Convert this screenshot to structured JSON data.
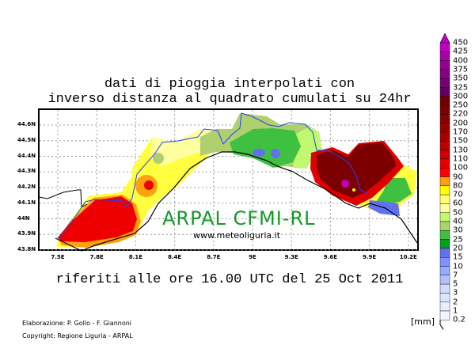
{
  "title_line1": "dati di pioggia interpolati con",
  "title_line2": "inverso distanza al quadrato cumulati su 24hr",
  "subtitle": "riferiti alle ore 16.00 UTC del 25 Oct 2011",
  "watermark": "ARPAL CFMI-RL",
  "website": "www.meteoliguria.it",
  "credits": "Elaborazione: P. Gollo - F. Giannoni",
  "copyright": "Copyright: Regione Liguria - ARPAL",
  "units": "[mm]",
  "lat_labels": [
    "44.6N",
    "44.5N",
    "44.4N",
    "44.3N",
    "44.2N",
    "44.1N",
    "44N",
    "43.9N",
    "43.8N"
  ],
  "lon_labels": [
    "7.5E",
    "7.8E",
    "8.1E",
    "8.4E",
    "8.7E",
    "9E",
    "9.3E",
    "9.6E",
    "9.9E",
    "10.2E"
  ],
  "legend": {
    "labels": [
      "450",
      "425",
      "400",
      "375",
      "350",
      "325",
      "300",
      "250",
      "220",
      "200",
      "170",
      "150",
      "130",
      "110",
      "100",
      "90",
      "80",
      "70",
      "60",
      "50",
      "40",
      "30",
      "25",
      "20",
      "15",
      "10",
      "7",
      "5",
      "3",
      "2",
      "1",
      "0.2"
    ],
    "colors": [
      "#c000c0",
      "#a800a8",
      "#940094",
      "#840084",
      "#740074",
      "#640064",
      "#700000",
      "#7c0000",
      "#880000",
      "#980000",
      "#a80000",
      "#bc0000",
      "#d00000",
      "#e80000",
      "#ff0000",
      "#ffa010",
      "#ffff00",
      "#ffff70",
      "#ffffa0",
      "#c0f870",
      "#b0d070",
      "#40c040",
      "#00a020",
      "#6070f0",
      "#8090ff",
      "#98aaff",
      "#b0c0ff",
      "#d0dcff",
      "#dce6ff",
      "#e6eeff",
      "#f0f6ff"
    ]
  }
}
